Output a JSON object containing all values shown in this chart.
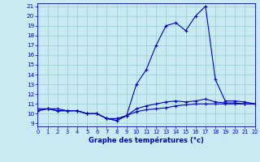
{
  "x": [
    0,
    1,
    2,
    3,
    4,
    5,
    6,
    7,
    8,
    9,
    10,
    11,
    12,
    13,
    14,
    15,
    16,
    17,
    18,
    19,
    20,
    21,
    22
  ],
  "temp_max": [
    10.5,
    10.5,
    10.5,
    10.3,
    10.3,
    10.0,
    10.0,
    9.5,
    9.5,
    9.8,
    13.0,
    14.5,
    17.0,
    19.0,
    19.3,
    18.5,
    20.0,
    21.0,
    13.5,
    11.3,
    11.3,
    11.2,
    11.0
  ],
  "temp_min": [
    10.3,
    10.5,
    10.3,
    10.3,
    10.3,
    10.0,
    10.0,
    9.5,
    9.3,
    9.8,
    10.2,
    10.4,
    10.5,
    10.6,
    10.8,
    10.9,
    11.0,
    11.0,
    11.0,
    11.0,
    11.0,
    11.0,
    11.0
  ],
  "temp_avg": [
    10.3,
    10.5,
    10.3,
    10.3,
    10.3,
    10.0,
    10.0,
    9.5,
    9.3,
    9.8,
    10.5,
    10.8,
    11.0,
    11.2,
    11.3,
    11.2,
    11.3,
    11.5,
    11.2,
    11.1,
    11.1,
    11.0,
    11.0
  ],
  "ylim_min": 9,
  "ylim_max": 21,
  "ytick_min": 9,
  "ytick_max": 21,
  "xlim_min": 0,
  "xlim_max": 22,
  "xticks": [
    0,
    1,
    2,
    3,
    4,
    5,
    6,
    7,
    8,
    9,
    10,
    11,
    12,
    13,
    14,
    15,
    16,
    17,
    18,
    19,
    20,
    21,
    22
  ],
  "xlabel": "Graphe des températures (°c)",
  "line_color": "#0000cc",
  "bg_color": "#c8eaf0",
  "grid_color": "#99ccd6"
}
